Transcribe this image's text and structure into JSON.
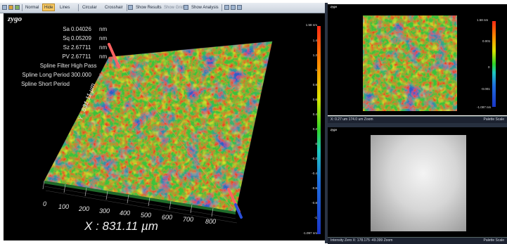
{
  "toolbar": {
    "buttons": [
      {
        "label": "Normal",
        "active": false
      },
      {
        "label": "Hide",
        "active": true
      },
      {
        "label": "Lines",
        "active": false
      },
      {
        "label": "Circular",
        "active": false
      },
      {
        "label": "Crosshair",
        "active": false
      },
      {
        "label": "Show Results",
        "active": false
      },
      {
        "label": "Show Grid",
        "active": false
      },
      {
        "label": "Show Analysis",
        "active": false
      }
    ]
  },
  "brand": "zygo",
  "stats": [
    {
      "name": "Sa",
      "value": "0.04026",
      "unit": "nm"
    },
    {
      "name": "Sq",
      "value": "0.05209",
      "unit": "nm"
    },
    {
      "name": "Sz",
      "value": "2.67711",
      "unit": "nm"
    },
    {
      "name": "PV",
      "value": "2.67711",
      "unit": "nm"
    },
    {
      "name": "Spline Filter",
      "value": "High Pass",
      "unit": ""
    },
    {
      "name": "Spline Long Period",
      "value": "300.000",
      "unit": "µm"
    },
    {
      "name": "Spline Short Period",
      "value": "",
      "unit": "µm"
    }
  ],
  "axes": {
    "x_title": "X : 831.11 µm",
    "y_title": "Y : 831.11 µm",
    "x_ticks": [
      "0",
      "100",
      "200",
      "300",
      "400",
      "500",
      "600",
      "700",
      "800"
    ]
  },
  "colorbar_main": {
    "labels": [
      "1.58 nm",
      "1.4",
      "1.2",
      "1",
      "0.8",
      "0.6",
      "0.4",
      "0.2",
      "0",
      "-0.2",
      "-0.4",
      "-0.6",
      "-0.8",
      "-1",
      "-1.097 nm"
    ]
  },
  "colorbar_top": {
    "labels": [
      "1.58 nm",
      "0.001",
      "0",
      "-0.001",
      "-1.097 nm"
    ]
  },
  "status_top": {
    "left": "X: 0.27 um  174.0 um  Zoom",
    "right": "Palette Scale"
  },
  "status_bottom": {
    "left": "Intensity Zero   X: 178.175  -49.399  Zoom",
    "right": "Palette Scale"
  },
  "colors": {
    "accent_active": "#f7c862",
    "surface_green": "#3cc23a",
    "surface_red": "#e8462a",
    "surface_blue": "#2a4fc8"
  }
}
